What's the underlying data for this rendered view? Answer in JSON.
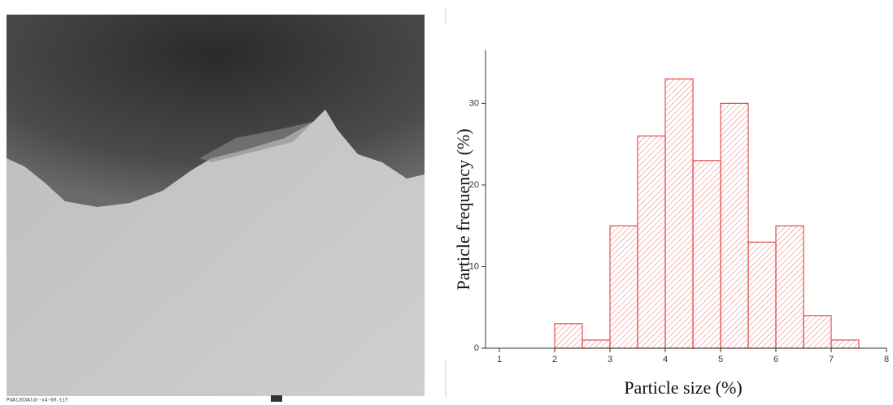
{
  "image": {
    "caption": "PdAl2O3Aldr-x4-60.tif"
  },
  "chart_data": {
    "type": "histogram",
    "xlabel": "Particle size (%)",
    "ylabel": "Particle frequency (%)",
    "bins": [
      2,
      2.5,
      3,
      3.5,
      4,
      4.5,
      5,
      5.5,
      6,
      6.5,
      7,
      7.5
    ],
    "values": [
      3,
      1,
      15,
      26,
      33,
      23,
      30,
      13,
      15,
      4,
      1
    ],
    "color": "#e0504f",
    "xlim": [
      0.75,
      8
    ],
    "xticks": [
      1,
      2,
      3,
      4,
      5,
      6,
      7,
      8
    ],
    "ylim": [
      0,
      36.5
    ],
    "yticks": [
      0,
      10,
      20,
      30
    ]
  }
}
